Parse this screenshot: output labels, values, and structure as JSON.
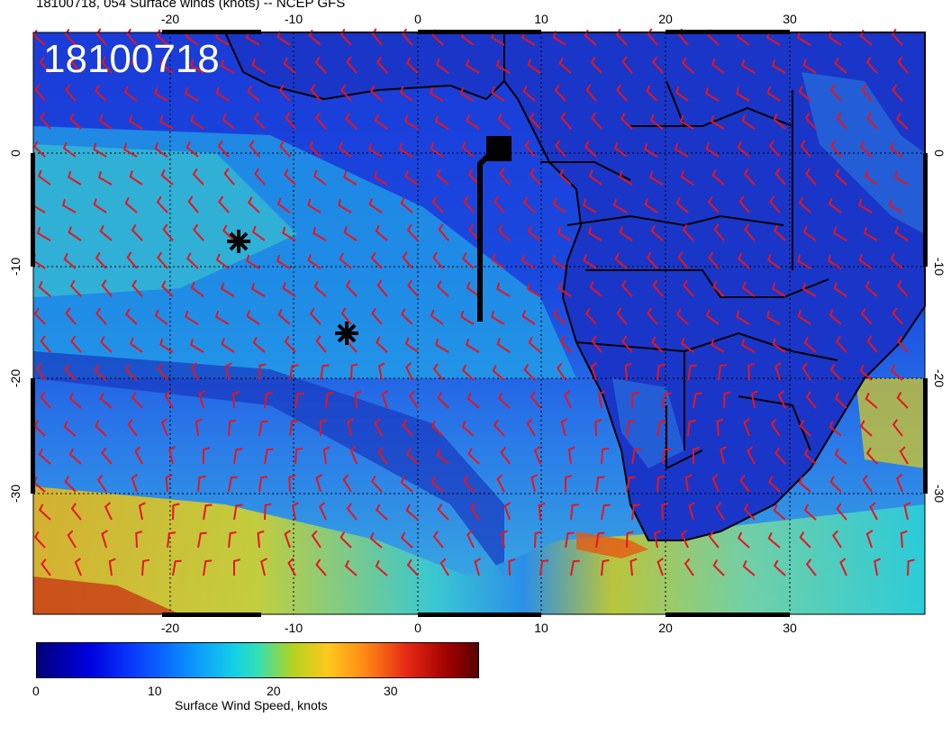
{
  "title": "18100718, 054 Surface winds (knots) -- NCEP GFS",
  "stamp": "18100718",
  "lon_labels": [
    "-20",
    "-10",
    "0",
    "10",
    "20",
    "30"
  ],
  "lat_labels": [
    "0",
    "-10",
    "-20",
    "-30"
  ],
  "colorbar": {
    "title": "Surface Wind Speed, knots",
    "ticks": [
      "0",
      "10",
      "20",
      "30"
    ],
    "range": [
      0,
      37
    ]
  },
  "markers": [
    {
      "name": "asterisk",
      "lon": -14.5,
      "lat": -8.5
    },
    {
      "name": "asterisk",
      "lon": -6.0,
      "lat": -16.0
    },
    {
      "name": "square-flag",
      "lon": 6.5,
      "lat": 0.0
    }
  ]
}
